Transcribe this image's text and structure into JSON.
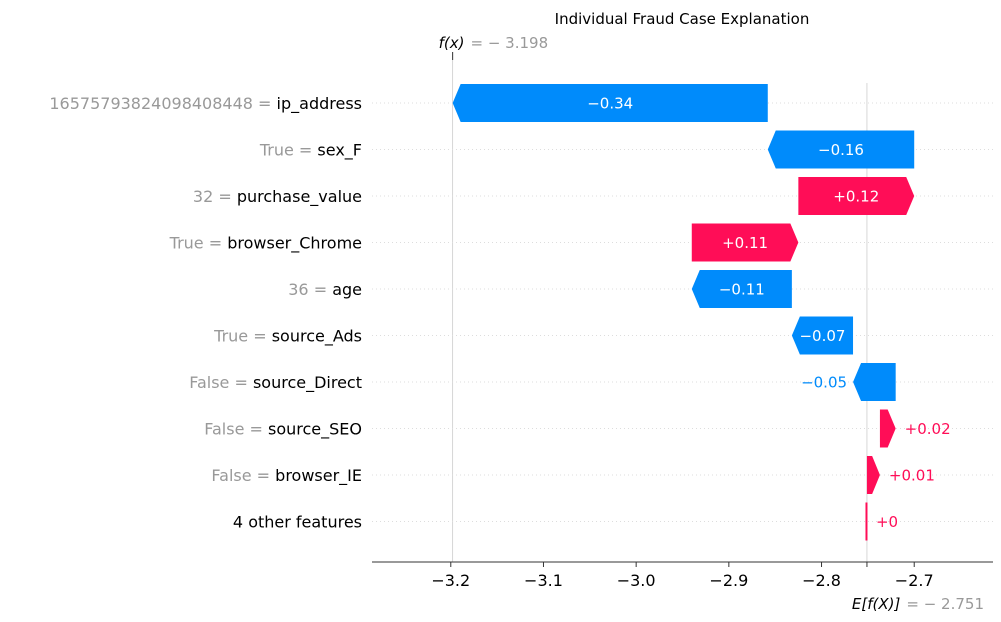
{
  "chart_data": {
    "type": "waterfall",
    "title": "Individual Fraud Case Explanation",
    "fx": {
      "label": "f(x)",
      "text": "= − 3.198",
      "value": -3.198
    },
    "ex": {
      "label": "E[f(X)]",
      "text": "= − 2.751",
      "value": -2.751
    },
    "xlim": [
      -3.285,
      -2.615
    ],
    "xticks": [
      -3.2,
      -3.1,
      -3.0,
      -2.9,
      -2.8,
      -2.7
    ],
    "xtick_labels": [
      "−3.2",
      "−3.1",
      "−3.0",
      "−2.9",
      "−2.8",
      "−2.7"
    ],
    "features": [
      {
        "value": "16575793824098408448",
        "name": "ip_address",
        "contribution": -0.34,
        "label": "−0.34",
        "start": -2.858,
        "end": -3.198
      },
      {
        "value": "True",
        "name": "sex_F",
        "contribution": -0.16,
        "label": "−0.16",
        "start": -2.7,
        "end": -2.858
      },
      {
        "value": "32",
        "name": "purchase_value",
        "contribution": 0.12,
        "label": "+0.12",
        "start": -2.825,
        "end": -2.7
      },
      {
        "value": "True",
        "name": "browser_Chrome",
        "contribution": 0.11,
        "label": "+0.11",
        "start": -2.94,
        "end": -2.825
      },
      {
        "value": "36",
        "name": "age",
        "contribution": -0.11,
        "label": "−0.11",
        "start": -2.832,
        "end": -2.94
      },
      {
        "value": "True",
        "name": "source_Ads",
        "contribution": -0.07,
        "label": "−0.07",
        "start": -2.766,
        "end": -2.832
      },
      {
        "value": "False",
        "name": "source_Direct",
        "contribution": -0.05,
        "label": "−0.05",
        "start": -2.72,
        "end": -2.766
      },
      {
        "value": "False",
        "name": "source_SEO",
        "contribution": 0.02,
        "label": "+0.02",
        "start": -2.737,
        "end": -2.72
      },
      {
        "value": "False",
        "name": "browser_IE",
        "contribution": 0.01,
        "label": "+0.01",
        "start": -2.751,
        "end": -2.737
      },
      {
        "value": "",
        "name": "4 other features",
        "contribution": 0.0,
        "label": "+0",
        "start": -2.7515,
        "end": -2.751
      }
    ],
    "colors": {
      "positive": "#ff0d57",
      "negative": "#008bfb",
      "value_gray": "#999999",
      "axis": "#333333",
      "grid": "#cccccc"
    }
  }
}
